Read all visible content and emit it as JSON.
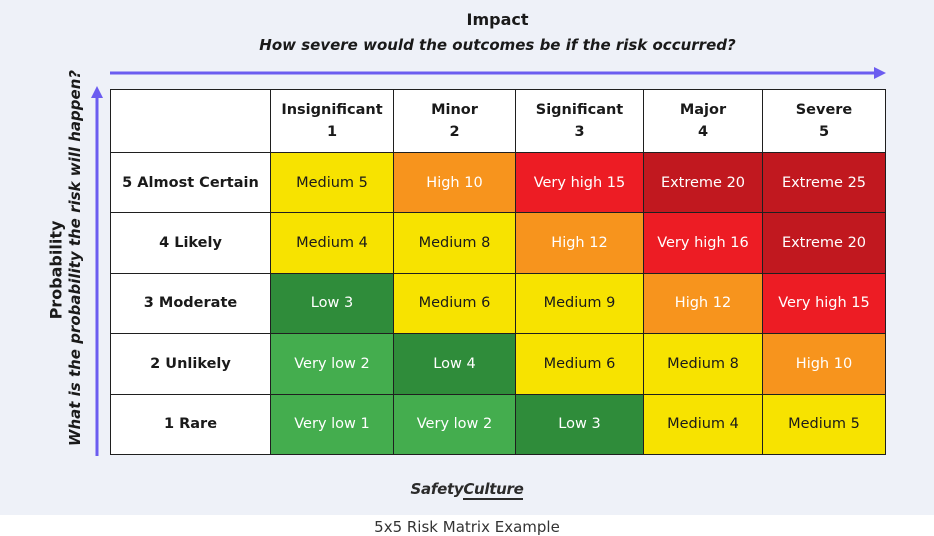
{
  "impact": {
    "title": "Impact",
    "subtitle": "How severe would the outcomes be if the risk occurred?"
  },
  "probability": {
    "title": "Probability",
    "subtitle": "What is the probability the risk will happen?"
  },
  "columns": [
    {
      "name": "Insignificant",
      "score": "1"
    },
    {
      "name": "Minor",
      "score": "2"
    },
    {
      "name": "Significant",
      "score": "3"
    },
    {
      "name": "Major",
      "score": "4"
    },
    {
      "name": "Severe",
      "score": "5"
    }
  ],
  "rows": [
    {
      "label": "5 Almost Certain",
      "cells": [
        {
          "text": "Medium 5",
          "level": "medium"
        },
        {
          "text": "High 10",
          "level": "high"
        },
        {
          "text": "Very high 15",
          "level": "very-high"
        },
        {
          "text": "Extreme 20",
          "level": "extreme"
        },
        {
          "text": "Extreme 25",
          "level": "extreme"
        }
      ]
    },
    {
      "label": "4 Likely",
      "cells": [
        {
          "text": "Medium 4",
          "level": "medium"
        },
        {
          "text": "Medium 8",
          "level": "medium"
        },
        {
          "text": "High 12",
          "level": "high"
        },
        {
          "text": "Very high 16",
          "level": "very-high"
        },
        {
          "text": "Extreme 20",
          "level": "extreme"
        }
      ]
    },
    {
      "label": "3 Moderate",
      "cells": [
        {
          "text": "Low 3",
          "level": "low"
        },
        {
          "text": "Medium 6",
          "level": "medium"
        },
        {
          "text": "Medium 9",
          "level": "medium"
        },
        {
          "text": "High 12",
          "level": "high"
        },
        {
          "text": "Very high 15",
          "level": "very-high"
        }
      ]
    },
    {
      "label": "2 Unlikely",
      "cells": [
        {
          "text": "Very low 2",
          "level": "very-low"
        },
        {
          "text": "Low 4",
          "level": "low"
        },
        {
          "text": "Medium 6",
          "level": "medium"
        },
        {
          "text": "Medium 8",
          "level": "medium"
        },
        {
          "text": "High 10",
          "level": "high"
        }
      ]
    },
    {
      "label": "1 Rare",
      "cells": [
        {
          "text": "Very low 1",
          "level": "very-low"
        },
        {
          "text": "Very low 2",
          "level": "very-low"
        },
        {
          "text": "Low 3",
          "level": "low"
        },
        {
          "text": "Medium 4",
          "level": "medium"
        },
        {
          "text": "Medium 5",
          "level": "medium"
        }
      ]
    }
  ],
  "logo": {
    "part1": "Safety",
    "part2": "Culture"
  },
  "caption": "5x5 Risk Matrix Example",
  "colors": {
    "background": "#eef1f8",
    "arrow": "#6b5cf0",
    "very-low": "#44ad4e",
    "low": "#2f8c3a",
    "medium": "#f7e300",
    "high": "#f7941d",
    "very-high": "#ed1c24",
    "extreme": "#c1181f"
  }
}
